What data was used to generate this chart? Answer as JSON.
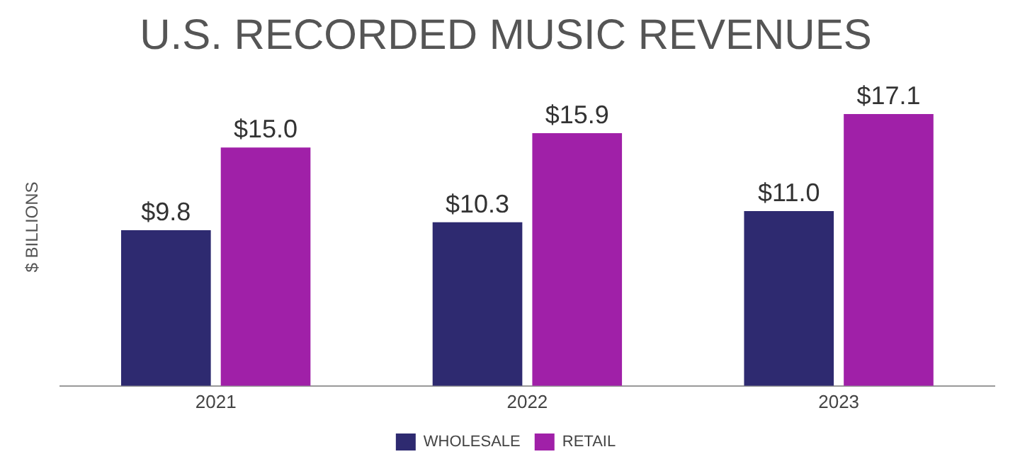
{
  "chart_data": {
    "type": "bar",
    "title": "U.S. RECORDED MUSIC REVENUES",
    "ylabel": "$ BILLIONS",
    "categories": [
      "2021",
      "2022",
      "2023"
    ],
    "series": [
      {
        "name": "WHOLESALE",
        "color": "#2e2a70",
        "values": [
          9.8,
          10.3,
          11.0
        ],
        "value_labels": [
          "$9.8",
          "$10.3",
          "$11.0"
        ]
      },
      {
        "name": "RETAIL",
        "color": "#a020a8",
        "values": [
          15.0,
          15.9,
          17.1
        ],
        "value_labels": [
          "$15.0",
          "$15.9",
          "$17.1"
        ]
      }
    ],
    "legend": "bottom",
    "grid": false
  }
}
